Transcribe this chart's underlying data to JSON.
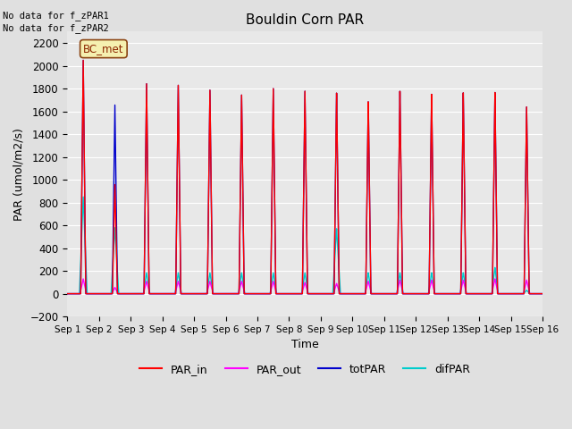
{
  "title": "Bouldin Corn PAR",
  "ylabel": "PAR (umol/m2/s)",
  "xlabel": "Time",
  "ylim": [
    -200,
    2300
  ],
  "yticks": [
    -200,
    0,
    200,
    400,
    600,
    800,
    1000,
    1200,
    1400,
    1600,
    1800,
    2000,
    2200
  ],
  "xtick_labels": [
    "Sep 1",
    "Sep 2",
    "Sep 3",
    "Sep 4",
    "Sep 5",
    "Sep 6",
    "Sep 7",
    "Sep 8",
    "Sep 9",
    "Sep 10",
    "Sep 11",
    "Sep 12",
    "Sep 13",
    "Sep 14",
    "Sep 15",
    "Sep 16"
  ],
  "no_data_text1": "No data for f_zPAR1",
  "no_data_text2": "No data for f_zPAR2",
  "legend_label_text": "BC_met",
  "colors": {
    "PAR_in": "#ff0000",
    "PAR_out": "#ff00ff",
    "totPAR": "#0000cc",
    "difPAR": "#00cccc"
  },
  "background_color": "#e0e0e0",
  "plot_bg_color": "#e8e8e8",
  "grid_color": "#ffffff",
  "num_days": 15,
  "peak_PAR_in": [
    2050,
    960,
    1850,
    1840,
    1800,
    1760,
    1820,
    1800,
    1780,
    1700,
    1790,
    1760,
    1770,
    1770,
    1640
  ],
  "peak_totPAR": [
    2050,
    1660,
    1850,
    1840,
    1800,
    1760,
    1820,
    1800,
    1780,
    1700,
    1790,
    1760,
    1770,
    1770,
    1640
  ],
  "peak_PAR_out": [
    130,
    55,
    110,
    110,
    110,
    110,
    110,
    100,
    90,
    110,
    120,
    120,
    120,
    130,
    120
  ],
  "peak_difPAR": [
    850,
    580,
    185,
    185,
    185,
    185,
    185,
    185,
    575,
    185,
    185,
    185,
    185,
    230,
    30
  ],
  "half_width_PAR_in": [
    0.08,
    0.08,
    0.08,
    0.08,
    0.08,
    0.08,
    0.08,
    0.08,
    0.08,
    0.08,
    0.08,
    0.08,
    0.08,
    0.08,
    0.08
  ],
  "half_width_difPAR": [
    0.12,
    0.12,
    0.1,
    0.1,
    0.1,
    0.1,
    0.1,
    0.1,
    0.12,
    0.1,
    0.1,
    0.1,
    0.1,
    0.1,
    0.1
  ],
  "half_width_PAR_out": [
    0.1,
    0.1,
    0.1,
    0.1,
    0.1,
    0.1,
    0.1,
    0.1,
    0.1,
    0.1,
    0.1,
    0.1,
    0.1,
    0.1,
    0.1
  ],
  "figsize": [
    6.4,
    4.8
  ],
  "dpi": 100
}
